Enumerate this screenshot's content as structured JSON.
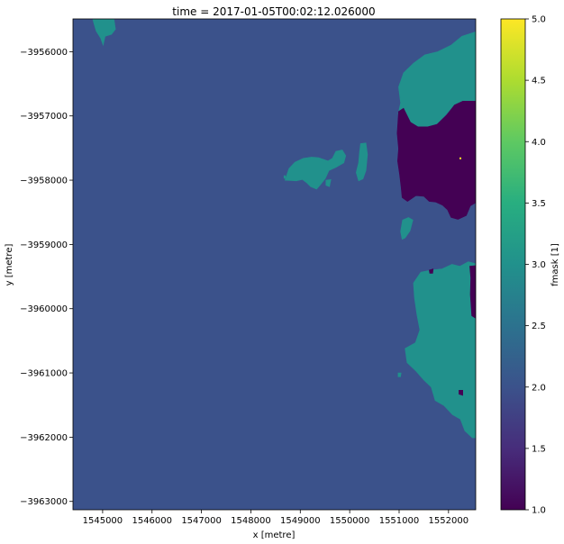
{
  "chart_data": {
    "type": "heatmap",
    "title": "time = 2017-01-05T00:02:12.026000",
    "xlabel": "x [metre]",
    "ylabel": "y [metre]",
    "xlim": [
      1544400,
      1552550
    ],
    "ylim": [
      -3963130,
      -3955490
    ],
    "x_ticks": [
      1545000,
      1546000,
      1547000,
      1548000,
      1549000,
      1550000,
      1551000,
      1552000
    ],
    "x_tick_labels": [
      "1545000",
      "1546000",
      "1547000",
      "1548000",
      "1549000",
      "1550000",
      "1551000",
      "1552000"
    ],
    "y_ticks": [
      -3956000,
      -3957000,
      -3958000,
      -3959000,
      -3960000,
      -3961000,
      -3962000,
      -3963000
    ],
    "y_tick_labels": [
      "−3956000",
      "−3957000",
      "−3958000",
      "−3959000",
      "−3960000",
      "−3961000",
      "−3962000",
      "−3963000"
    ],
    "colorbar": {
      "label": "fmask [1]",
      "colormap": "viridis",
      "range": [
        1.0,
        5.0
      ],
      "ticks": [
        1.0,
        1.5,
        2.0,
        2.5,
        3.0,
        3.5,
        4.0,
        4.5,
        5.0
      ],
      "tick_labels": [
        "1.0",
        "1.5",
        "2.0",
        "2.5",
        "3.0",
        "3.5",
        "4.0",
        "4.5",
        "5.0"
      ]
    },
    "classes": [
      {
        "value": 1,
        "color": "#440154"
      },
      {
        "value": 2,
        "color": "#3b528b"
      },
      {
        "value": 3,
        "color": "#21918c"
      },
      {
        "value": 5,
        "color": "#fde725"
      }
    ],
    "background_value": 2,
    "regions": [
      {
        "value": 3,
        "points": [
          [
            1544800,
            -3955490
          ],
          [
            1545230,
            -3955490
          ],
          [
            1545260,
            -3955650
          ],
          [
            1545180,
            -3955730
          ],
          [
            1545050,
            -3955760
          ],
          [
            1545010,
            -3955900
          ],
          [
            1544960,
            -3955790
          ],
          [
            1544870,
            -3955680
          ],
          [
            1544830,
            -3955580
          ]
        ]
      },
      {
        "value": 3,
        "points": [
          [
            1552550,
            -3955690
          ],
          [
            1552270,
            -3955760
          ],
          [
            1552050,
            -3955900
          ],
          [
            1551780,
            -3956000
          ],
          [
            1551520,
            -3956050
          ],
          [
            1551290,
            -3956180
          ],
          [
            1551090,
            -3956330
          ],
          [
            1550990,
            -3956550
          ],
          [
            1551030,
            -3956800
          ],
          [
            1550980,
            -3956970
          ],
          [
            1551110,
            -3957030
          ],
          [
            1551280,
            -3957140
          ],
          [
            1551420,
            -3957190
          ],
          [
            1551590,
            -3957170
          ],
          [
            1551770,
            -3957120
          ],
          [
            1551930,
            -3956990
          ],
          [
            1552090,
            -3956850
          ],
          [
            1552250,
            -3956790
          ],
          [
            1552400,
            -3956790
          ],
          [
            1552550,
            -3956790
          ]
        ]
      },
      {
        "value": 1,
        "points": [
          [
            1550990,
            -3956930
          ],
          [
            1551090,
            -3956880
          ],
          [
            1551230,
            -3957100
          ],
          [
            1551380,
            -3957170
          ],
          [
            1551580,
            -3957170
          ],
          [
            1551770,
            -3957130
          ],
          [
            1551960,
            -3956990
          ],
          [
            1552120,
            -3956830
          ],
          [
            1552290,
            -3956770
          ],
          [
            1552550,
            -3956770
          ],
          [
            1552550,
            -3958350
          ],
          [
            1552440,
            -3958400
          ],
          [
            1552360,
            -3958550
          ],
          [
            1552190,
            -3958610
          ],
          [
            1552050,
            -3958580
          ],
          [
            1551980,
            -3958460
          ],
          [
            1551880,
            -3958390
          ],
          [
            1551740,
            -3958340
          ],
          [
            1551610,
            -3958330
          ],
          [
            1551500,
            -3958250
          ],
          [
            1551340,
            -3958240
          ],
          [
            1551170,
            -3958330
          ],
          [
            1551060,
            -3958270
          ],
          [
            1551040,
            -3958110
          ],
          [
            1551010,
            -3957910
          ],
          [
            1550970,
            -3957700
          ],
          [
            1550990,
            -3957510
          ],
          [
            1550960,
            -3957270
          ]
        ]
      },
      {
        "value": 3,
        "points": [
          [
            1550220,
            -3957430
          ],
          [
            1550330,
            -3957420
          ],
          [
            1550360,
            -3957600
          ],
          [
            1550330,
            -3957850
          ],
          [
            1550270,
            -3957980
          ],
          [
            1550180,
            -3958010
          ],
          [
            1550130,
            -3957880
          ],
          [
            1550180,
            -3957730
          ],
          [
            1550200,
            -3957560
          ]
        ]
      },
      {
        "value": 3,
        "points": [
          [
            1548690,
            -3958000
          ],
          [
            1548770,
            -3957820
          ],
          [
            1548890,
            -3957720
          ],
          [
            1549060,
            -3957660
          ],
          [
            1549230,
            -3957640
          ],
          [
            1549370,
            -3957650
          ],
          [
            1549560,
            -3957700
          ],
          [
            1549650,
            -3957660
          ],
          [
            1549720,
            -3957550
          ],
          [
            1549850,
            -3957530
          ],
          [
            1549920,
            -3957620
          ],
          [
            1549880,
            -3957730
          ],
          [
            1549720,
            -3957800
          ],
          [
            1549580,
            -3957850
          ],
          [
            1549510,
            -3957970
          ],
          [
            1549420,
            -3958060
          ],
          [
            1549330,
            -3958140
          ],
          [
            1549210,
            -3958100
          ],
          [
            1549130,
            -3958040
          ],
          [
            1549040,
            -3957990
          ],
          [
            1548920,
            -3958010
          ]
        ]
      },
      {
        "value": 3,
        "points": [
          [
            1549520,
            -3958000
          ],
          [
            1549620,
            -3957990
          ],
          [
            1549590,
            -3958100
          ],
          [
            1549520,
            -3958080
          ]
        ]
      },
      {
        "value": 3,
        "points": [
          [
            1551070,
            -3958620
          ],
          [
            1551190,
            -3958580
          ],
          [
            1551280,
            -3958620
          ],
          [
            1551220,
            -3958790
          ],
          [
            1551120,
            -3958900
          ],
          [
            1551060,
            -3958920
          ],
          [
            1551030,
            -3958800
          ]
        ]
      },
      {
        "value": 3,
        "points": [
          [
            1552550,
            -3959300
          ],
          [
            1552400,
            -3959270
          ],
          [
            1552230,
            -3959340
          ],
          [
            1552070,
            -3959310
          ],
          [
            1551870,
            -3959380
          ],
          [
            1551650,
            -3959400
          ],
          [
            1551440,
            -3959430
          ],
          [
            1551290,
            -3959600
          ],
          [
            1551310,
            -3959830
          ],
          [
            1551360,
            -3960090
          ],
          [
            1551420,
            -3960330
          ],
          [
            1551330,
            -3960530
          ],
          [
            1551120,
            -3960620
          ],
          [
            1551160,
            -3960840
          ],
          [
            1551340,
            -3960970
          ],
          [
            1551500,
            -3961110
          ],
          [
            1551650,
            -3961220
          ],
          [
            1551730,
            -3961430
          ],
          [
            1551910,
            -3961510
          ],
          [
            1552080,
            -3961650
          ],
          [
            1552240,
            -3961720
          ],
          [
            1552330,
            -3961900
          ],
          [
            1552480,
            -3962010
          ],
          [
            1552550,
            -3962010
          ]
        ]
      },
      {
        "value": 1,
        "points": [
          [
            1552430,
            -3959340
          ],
          [
            1552550,
            -3959330
          ],
          [
            1552550,
            -3960150
          ],
          [
            1552470,
            -3960110
          ],
          [
            1552440,
            -3959780
          ],
          [
            1552450,
            -3959520
          ]
        ]
      },
      {
        "value": 1,
        "points": [
          [
            1551610,
            -3959400
          ],
          [
            1551690,
            -3959380
          ],
          [
            1551680,
            -3959450
          ],
          [
            1551620,
            -3959450
          ]
        ]
      },
      {
        "value": 1,
        "points": [
          [
            1552210,
            -3961270
          ],
          [
            1552290,
            -3961270
          ],
          [
            1552290,
            -3961350
          ],
          [
            1552210,
            -3961330
          ]
        ]
      },
      {
        "value": 3,
        "points": [
          [
            1550980,
            -3961000
          ],
          [
            1551040,
            -3961000
          ],
          [
            1551030,
            -3961060
          ],
          [
            1550980,
            -3961060
          ]
        ]
      },
      {
        "value": 3,
        "points": [
          [
            1548670,
            -3957930
          ],
          [
            1548700,
            -3957930
          ],
          [
            1548700,
            -3957970
          ],
          [
            1548670,
            -3957970
          ]
        ]
      }
    ],
    "points": [
      {
        "value": 5,
        "x": 1552240,
        "y": -3957660
      }
    ]
  }
}
